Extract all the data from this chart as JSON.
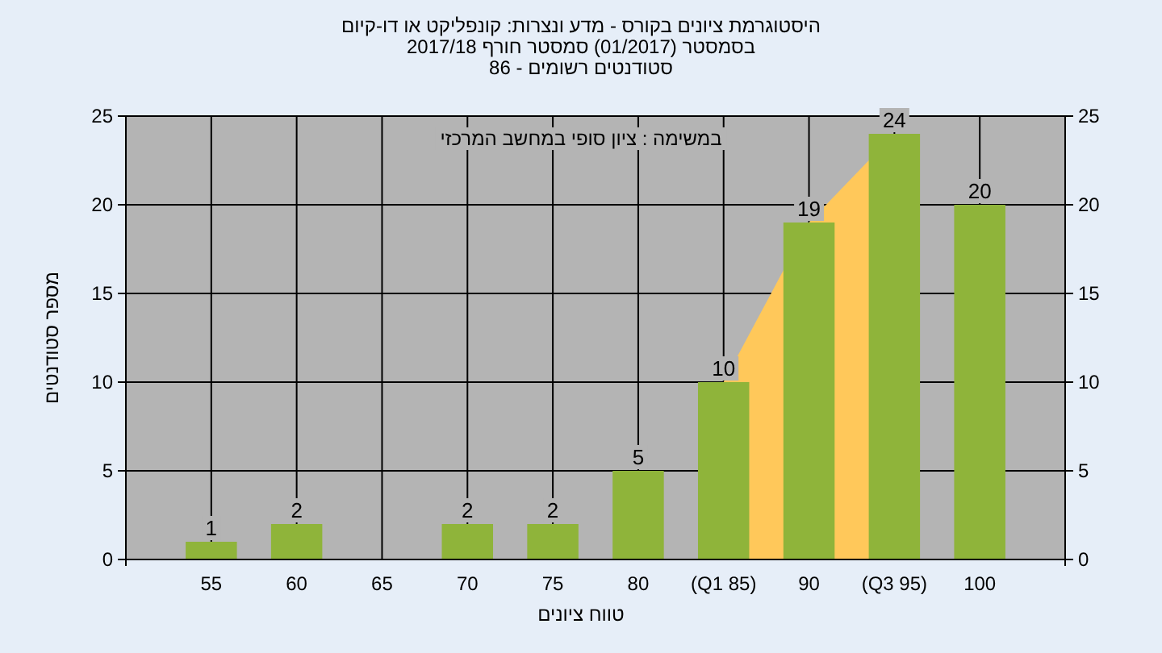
{
  "chart_data": {
    "type": "bar",
    "title": "היסטוגרמת ציונים בקורס - מדע ונצרות: קונפליקט או דו-קיום",
    "subtitle": "בסמסטר  (01/2017)  סמסטר חורף 2017/18",
    "xlabel": "טווח ציונים",
    "ylabel": "מספר סטודנטים",
    "annotations": [
      "סטודנטים רשומים - 86",
      "במשימה : ציון סופי במחשב המרכזי"
    ],
    "categories": [
      "55",
      "60",
      "65",
      "70",
      "75",
      "80",
      "(Q1 85)",
      "90",
      "(Q3 95)",
      "100"
    ],
    "series": [
      {
        "type": "area",
        "color": "#ffc85a",
        "values": [
          null,
          null,
          null,
          null,
          null,
          null,
          10,
          19,
          24,
          null
        ]
      },
      {
        "color": "#8fb43a",
        "values": [
          1,
          2,
          null,
          2,
          2,
          5,
          10,
          19,
          24,
          20
        ],
        "value_labels": [
          "1",
          "2",
          null,
          "2",
          "2",
          "5",
          "10",
          "19",
          "24",
          "20"
        ]
      }
    ],
    "ylim": [
      0,
      25
    ],
    "yticks": [
      0,
      5,
      10,
      15,
      20,
      25
    ],
    "y2lim": [
      0,
      25
    ],
    "y2ticks": [
      0,
      5,
      10,
      15,
      20,
      25
    ],
    "grid": true
  }
}
